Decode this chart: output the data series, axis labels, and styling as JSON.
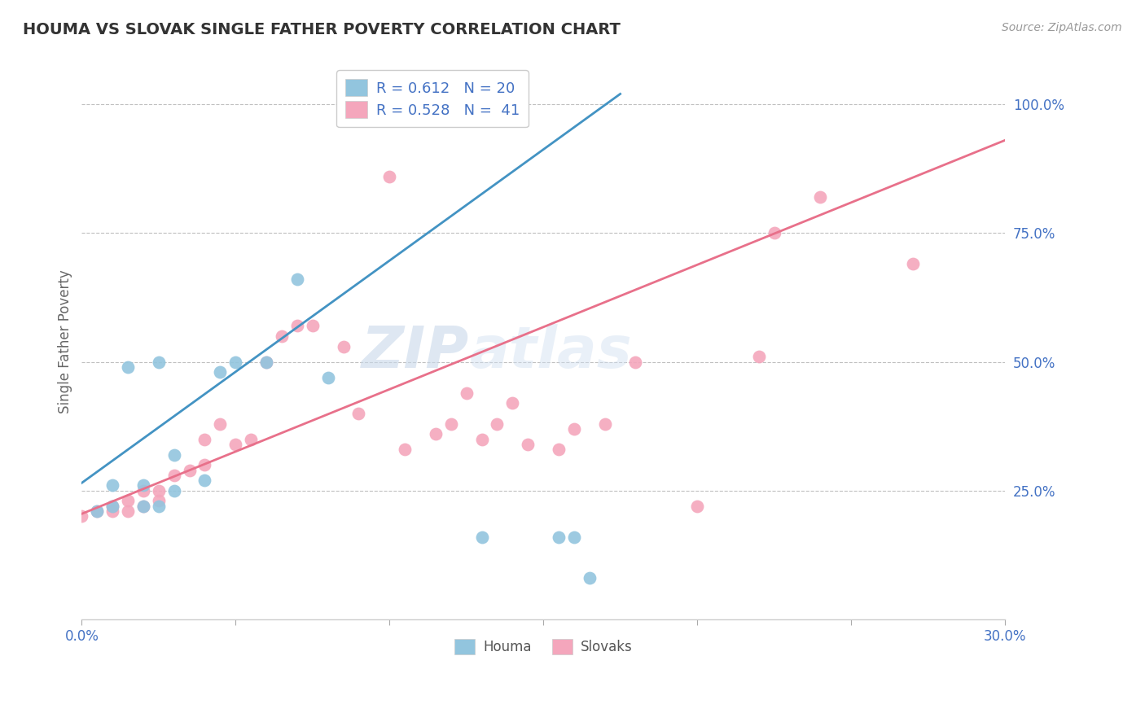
{
  "title": "HOUMA VS SLOVAK SINGLE FATHER POVERTY CORRELATION CHART",
  "source_text": "Source: ZipAtlas.com",
  "ylabel": "Single Father Poverty",
  "xlim": [
    0.0,
    0.3
  ],
  "ylim": [
    0.0,
    1.08
  ],
  "xticks": [
    0.0,
    0.05,
    0.1,
    0.15,
    0.2,
    0.25,
    0.3
  ],
  "xtick_labels": [
    "0.0%",
    "",
    "",
    "",
    "",
    "",
    "30.0%"
  ],
  "ytick_positions": [
    0.25,
    0.5,
    0.75,
    1.0
  ],
  "ytick_labels": [
    "25.0%",
    "50.0%",
    "75.0%",
    "100.0%"
  ],
  "blue_color": "#92c5de",
  "pink_color": "#f4a6bc",
  "blue_line_color": "#4393c3",
  "pink_line_color": "#e8708a",
  "legend_blue_r": "R = 0.612",
  "legend_blue_n": "N = 20",
  "legend_pink_r": "R = 0.528",
  "legend_pink_n": "N =  41",
  "watermark_zip": "ZIP",
  "watermark_atlas": "atlas",
  "houma_x": [
    0.005,
    0.01,
    0.01,
    0.015,
    0.02,
    0.02,
    0.025,
    0.025,
    0.03,
    0.03,
    0.04,
    0.045,
    0.05,
    0.06,
    0.07,
    0.08,
    0.13,
    0.155,
    0.16,
    0.165
  ],
  "houma_y": [
    0.21,
    0.22,
    0.26,
    0.49,
    0.22,
    0.26,
    0.22,
    0.5,
    0.25,
    0.32,
    0.27,
    0.48,
    0.5,
    0.5,
    0.66,
    0.47,
    0.16,
    0.16,
    0.16,
    0.08
  ],
  "slovak_x": [
    0.0,
    0.005,
    0.01,
    0.01,
    0.015,
    0.015,
    0.02,
    0.02,
    0.025,
    0.025,
    0.03,
    0.035,
    0.04,
    0.04,
    0.045,
    0.05,
    0.055,
    0.06,
    0.065,
    0.07,
    0.075,
    0.085,
    0.09,
    0.1,
    0.105,
    0.115,
    0.12,
    0.125,
    0.13,
    0.135,
    0.14,
    0.145,
    0.155,
    0.16,
    0.17,
    0.18,
    0.2,
    0.22,
    0.225,
    0.24,
    0.27
  ],
  "slovak_y": [
    0.2,
    0.21,
    0.21,
    0.22,
    0.21,
    0.23,
    0.22,
    0.25,
    0.23,
    0.25,
    0.28,
    0.29,
    0.3,
    0.35,
    0.38,
    0.34,
    0.35,
    0.5,
    0.55,
    0.57,
    0.57,
    0.53,
    0.4,
    0.86,
    0.33,
    0.36,
    0.38,
    0.44,
    0.35,
    0.38,
    0.42,
    0.34,
    0.33,
    0.37,
    0.38,
    0.5,
    0.22,
    0.51,
    0.75,
    0.82,
    0.69
  ],
  "blue_trendline_x": [
    0.0,
    0.175
  ],
  "blue_trendline_y": [
    0.265,
    1.02
  ],
  "pink_trendline_x": [
    0.0,
    0.3
  ],
  "pink_trendline_y": [
    0.205,
    0.93
  ]
}
